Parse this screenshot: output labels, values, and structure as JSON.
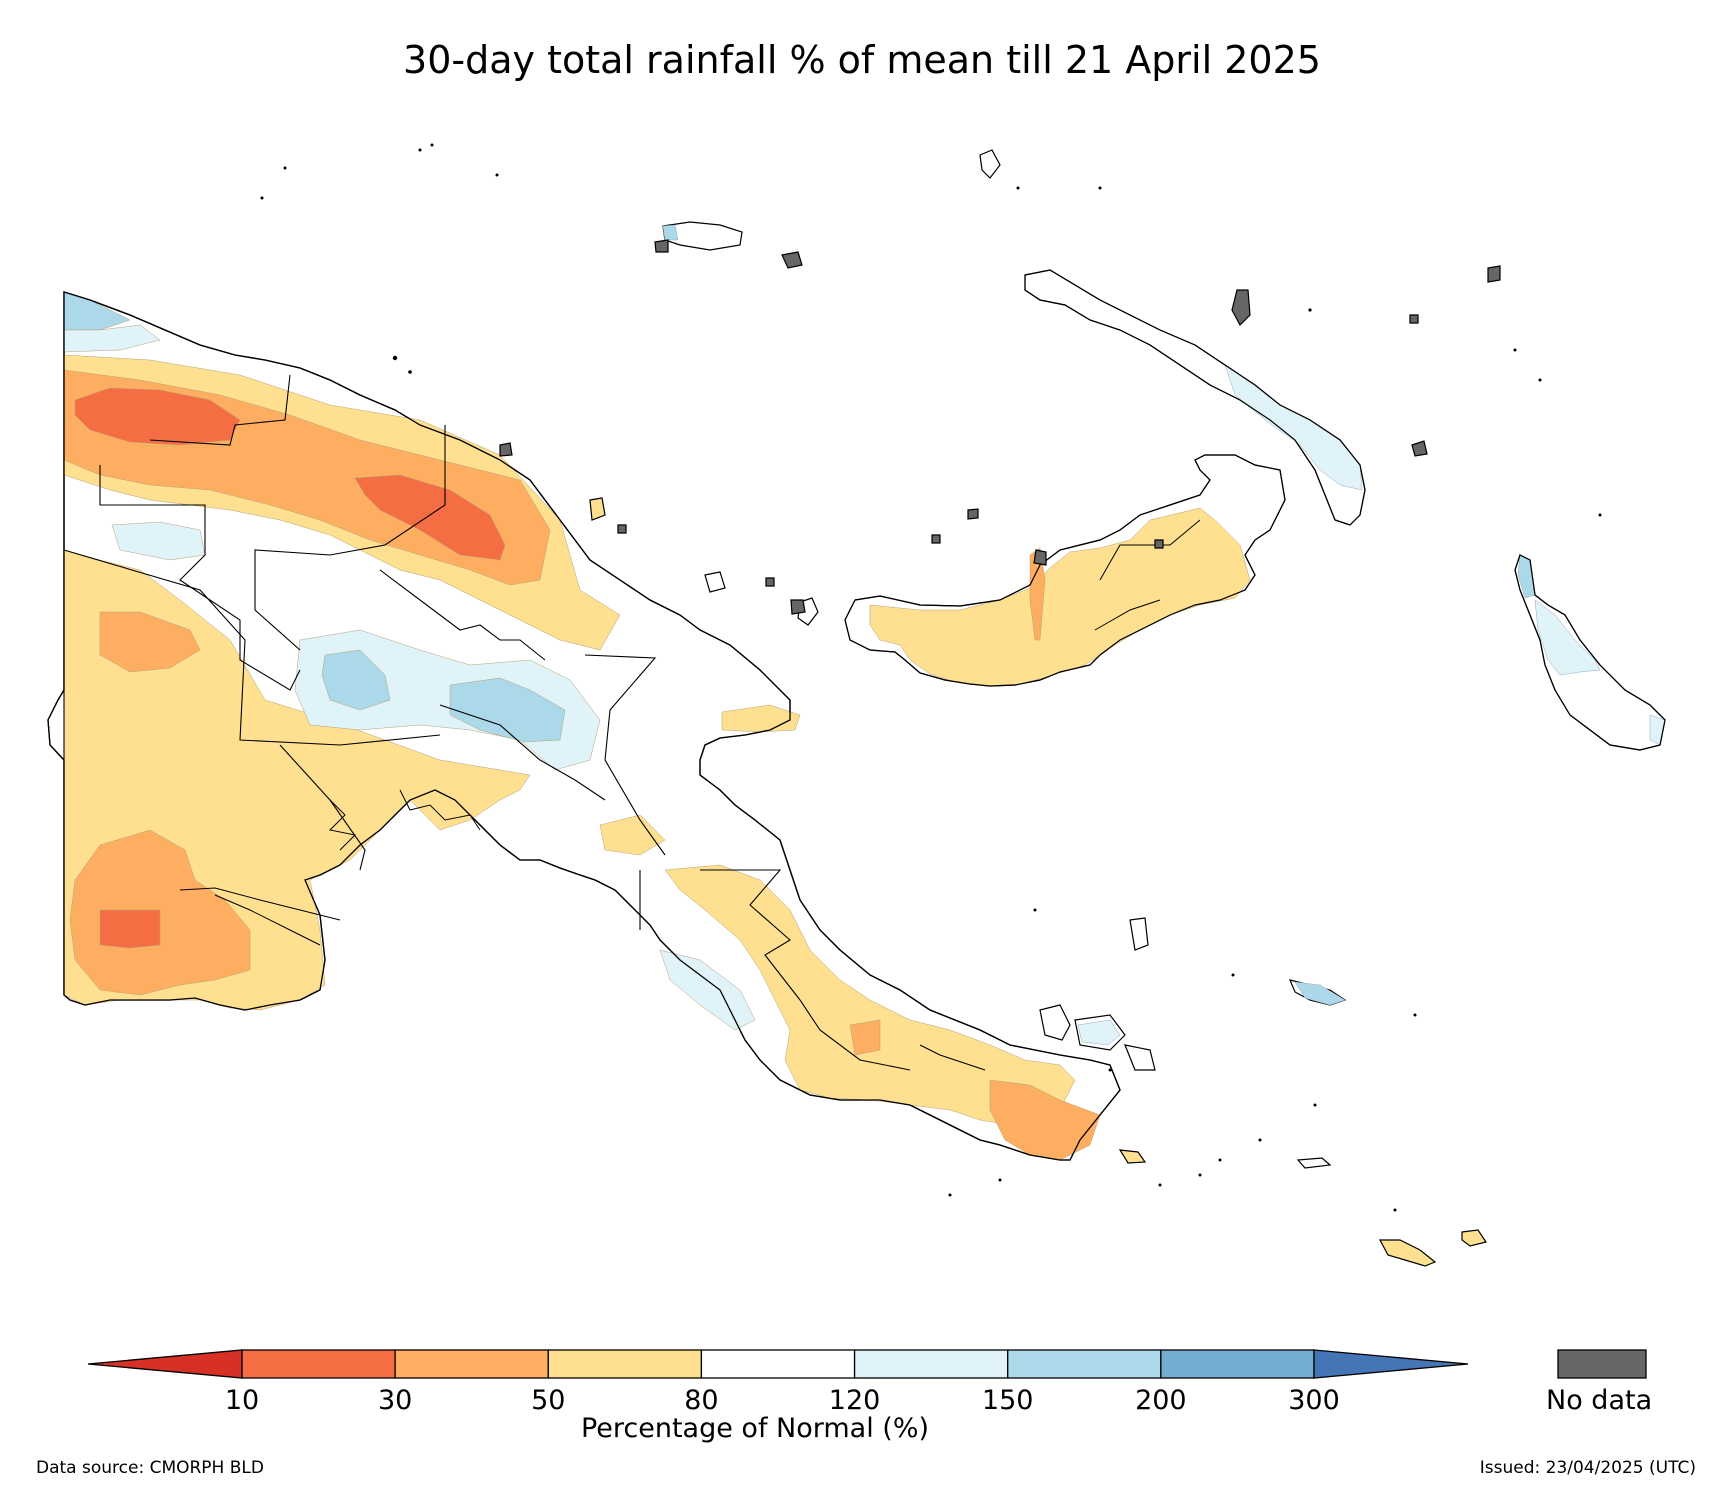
{
  "title": "30-day total rainfall % of mean till 21 April 2025",
  "legend": {
    "label": "Percentage of Normal (%)",
    "thresholds": [
      "10",
      "30",
      "50",
      "80",
      "120",
      "150",
      "200",
      "300"
    ],
    "bins": [
      {
        "range": "<10",
        "color": "#d73027"
      },
      {
        "range": "10-30",
        "color": "#f46d43"
      },
      {
        "range": "30-50",
        "color": "#fdae61"
      },
      {
        "range": "50-80",
        "color": "#fee090"
      },
      {
        "range": "80-120",
        "color": "#ffffff"
      },
      {
        "range": "120-150",
        "color": "#e0f3f8"
      },
      {
        "range": "150-200",
        "color": "#abd9e9"
      },
      {
        "range": "200-300",
        "color": "#74add1"
      },
      {
        "range": ">300",
        "color": "#4575b4"
      }
    ],
    "no_data": {
      "label": "No data",
      "color": "#666666"
    }
  },
  "footer": {
    "source": "Data source: CMORPH BLD",
    "issued": "Issued: 23/04/2025 (UTC)"
  }
}
